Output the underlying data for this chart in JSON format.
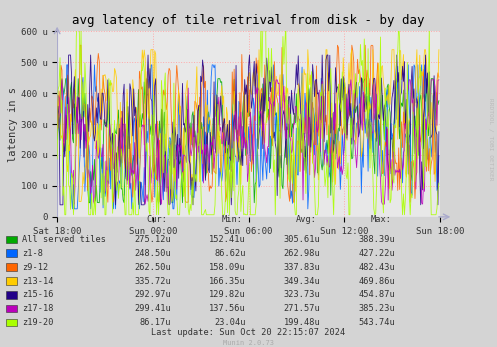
{
  "title": "avg latency of tile retrival from disk - by day",
  "ylabel": "latency in s",
  "background_color": "#d4d4d4",
  "plot_bg_color": "#e8e8e8",
  "grid_color": "#ffaaaa",
  "yticks": [
    0,
    100,
    200,
    300,
    400,
    500,
    600
  ],
  "ytick_labels": [
    "0",
    "100 u",
    "200 u",
    "300 u",
    "400 u",
    "500 u",
    "600 u"
  ],
  "xtick_labels": [
    "Sat 18:00",
    "Sun 00:00",
    "Sun 06:00",
    "Sun 12:00",
    "Sun 18:00"
  ],
  "watermark": "RRDTOOL / TOBI OETIKER",
  "munin_version": "Munin 2.0.73",
  "last_update": "Last update: Sun Oct 20 22:15:07 2024",
  "series": [
    {
      "label": "All served tiles",
      "color": "#00aa00",
      "avg": 305.61,
      "min": 152.41,
      "max": 388.39,
      "cur": 275.12
    },
    {
      "label": "z1-8",
      "color": "#0066ff",
      "avg": 262.98,
      "min": 86.62,
      "max": 427.22,
      "cur": 248.5
    },
    {
      "label": "z9-12",
      "color": "#ff6600",
      "avg": 337.83,
      "min": 158.09,
      "max": 482.43,
      "cur": 262.5
    },
    {
      "label": "z13-14",
      "color": "#ffcc00",
      "avg": 349.34,
      "min": 166.35,
      "max": 469.86,
      "cur": 335.72
    },
    {
      "label": "z15-16",
      "color": "#220088",
      "avg": 323.73,
      "min": 129.82,
      "max": 454.87,
      "cur": 292.97
    },
    {
      "label": "z17-18",
      "color": "#bb00bb",
      "avg": 271.57,
      "min": 137.56,
      "max": 385.23,
      "cur": 299.41
    },
    {
      "label": "z19-20",
      "color": "#aaff00",
      "avg": 199.48,
      "min": 23.04,
      "max": 543.74,
      "cur": 86.17
    }
  ],
  "n_points": 400,
  "ylim": [
    0,
    600
  ]
}
